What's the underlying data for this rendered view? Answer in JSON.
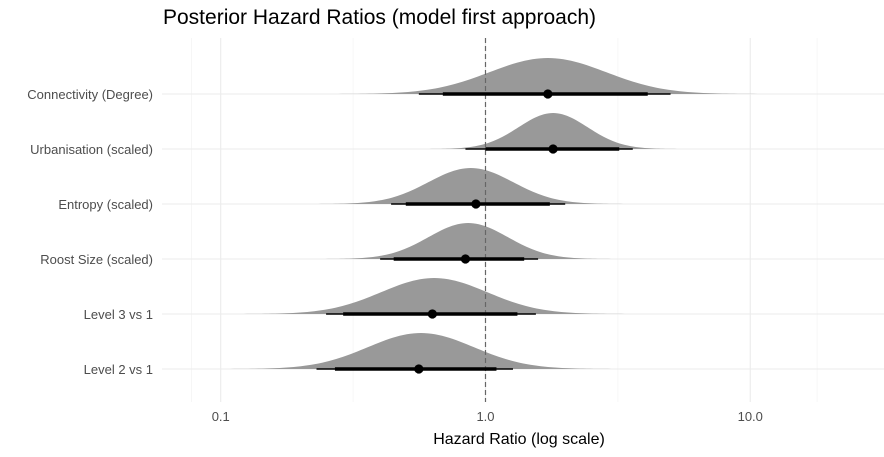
{
  "chart_data": {
    "type": "halfeye",
    "title": "Posterior Hazard Ratios (model first approach)",
    "xlabel": "Hazard Ratio (log scale)",
    "ylabel": "",
    "x_scale": "log10",
    "xlim": [
      0.06,
      32
    ],
    "x_ticks": [
      0.1,
      1.0,
      10.0
    ],
    "x_tick_labels": [
      "0.1",
      "1.0",
      "10.0"
    ],
    "reference_line": 1.0,
    "grid": true,
    "density_color": "#999999",
    "interval_color": "#000000",
    "reference_line_color": "#666666",
    "categories": [
      "Connectivity (Degree)",
      "Urbanisation (scaled)",
      "Entropy (scaled)",
      "Roost Size (scaled)",
      "Level 3 vs 1",
      "Level 2 vs 1"
    ],
    "rows": [
      {
        "label": "Connectivity (Degree)",
        "point": 1.72,
        "interval_66": [
          0.69,
          4.1
        ],
        "interval_95": [
          0.56,
          5.0
        ],
        "density_mode": 1.72,
        "density_spread": 0.22
      },
      {
        "label": "Urbanisation (scaled)",
        "point": 1.8,
        "interval_66": [
          1.0,
          3.2
        ],
        "interval_95": [
          0.84,
          3.6
        ],
        "density_mode": 1.8,
        "density_spread": 0.13
      },
      {
        "label": "Entropy (scaled)",
        "point": 0.92,
        "interval_66": [
          0.5,
          1.75
        ],
        "interval_95": [
          0.44,
          2.0
        ],
        "density_mode": 0.88,
        "density_spread": 0.16
      },
      {
        "label": "Roost Size (scaled)",
        "point": 0.84,
        "interval_66": [
          0.45,
          1.4
        ],
        "interval_95": [
          0.4,
          1.58
        ],
        "density_mode": 0.86,
        "density_spread": 0.15
      },
      {
        "label": "Level 3 vs 1",
        "point": 0.63,
        "interval_66": [
          0.29,
          1.32
        ],
        "interval_95": [
          0.25,
          1.55
        ],
        "density_mode": 0.64,
        "density_spread": 0.2
      },
      {
        "label": "Level 2 vs 1",
        "point": 0.56,
        "interval_66": [
          0.27,
          1.1
        ],
        "interval_95": [
          0.23,
          1.27
        ],
        "density_mode": 0.57,
        "density_spread": 0.2
      }
    ]
  }
}
